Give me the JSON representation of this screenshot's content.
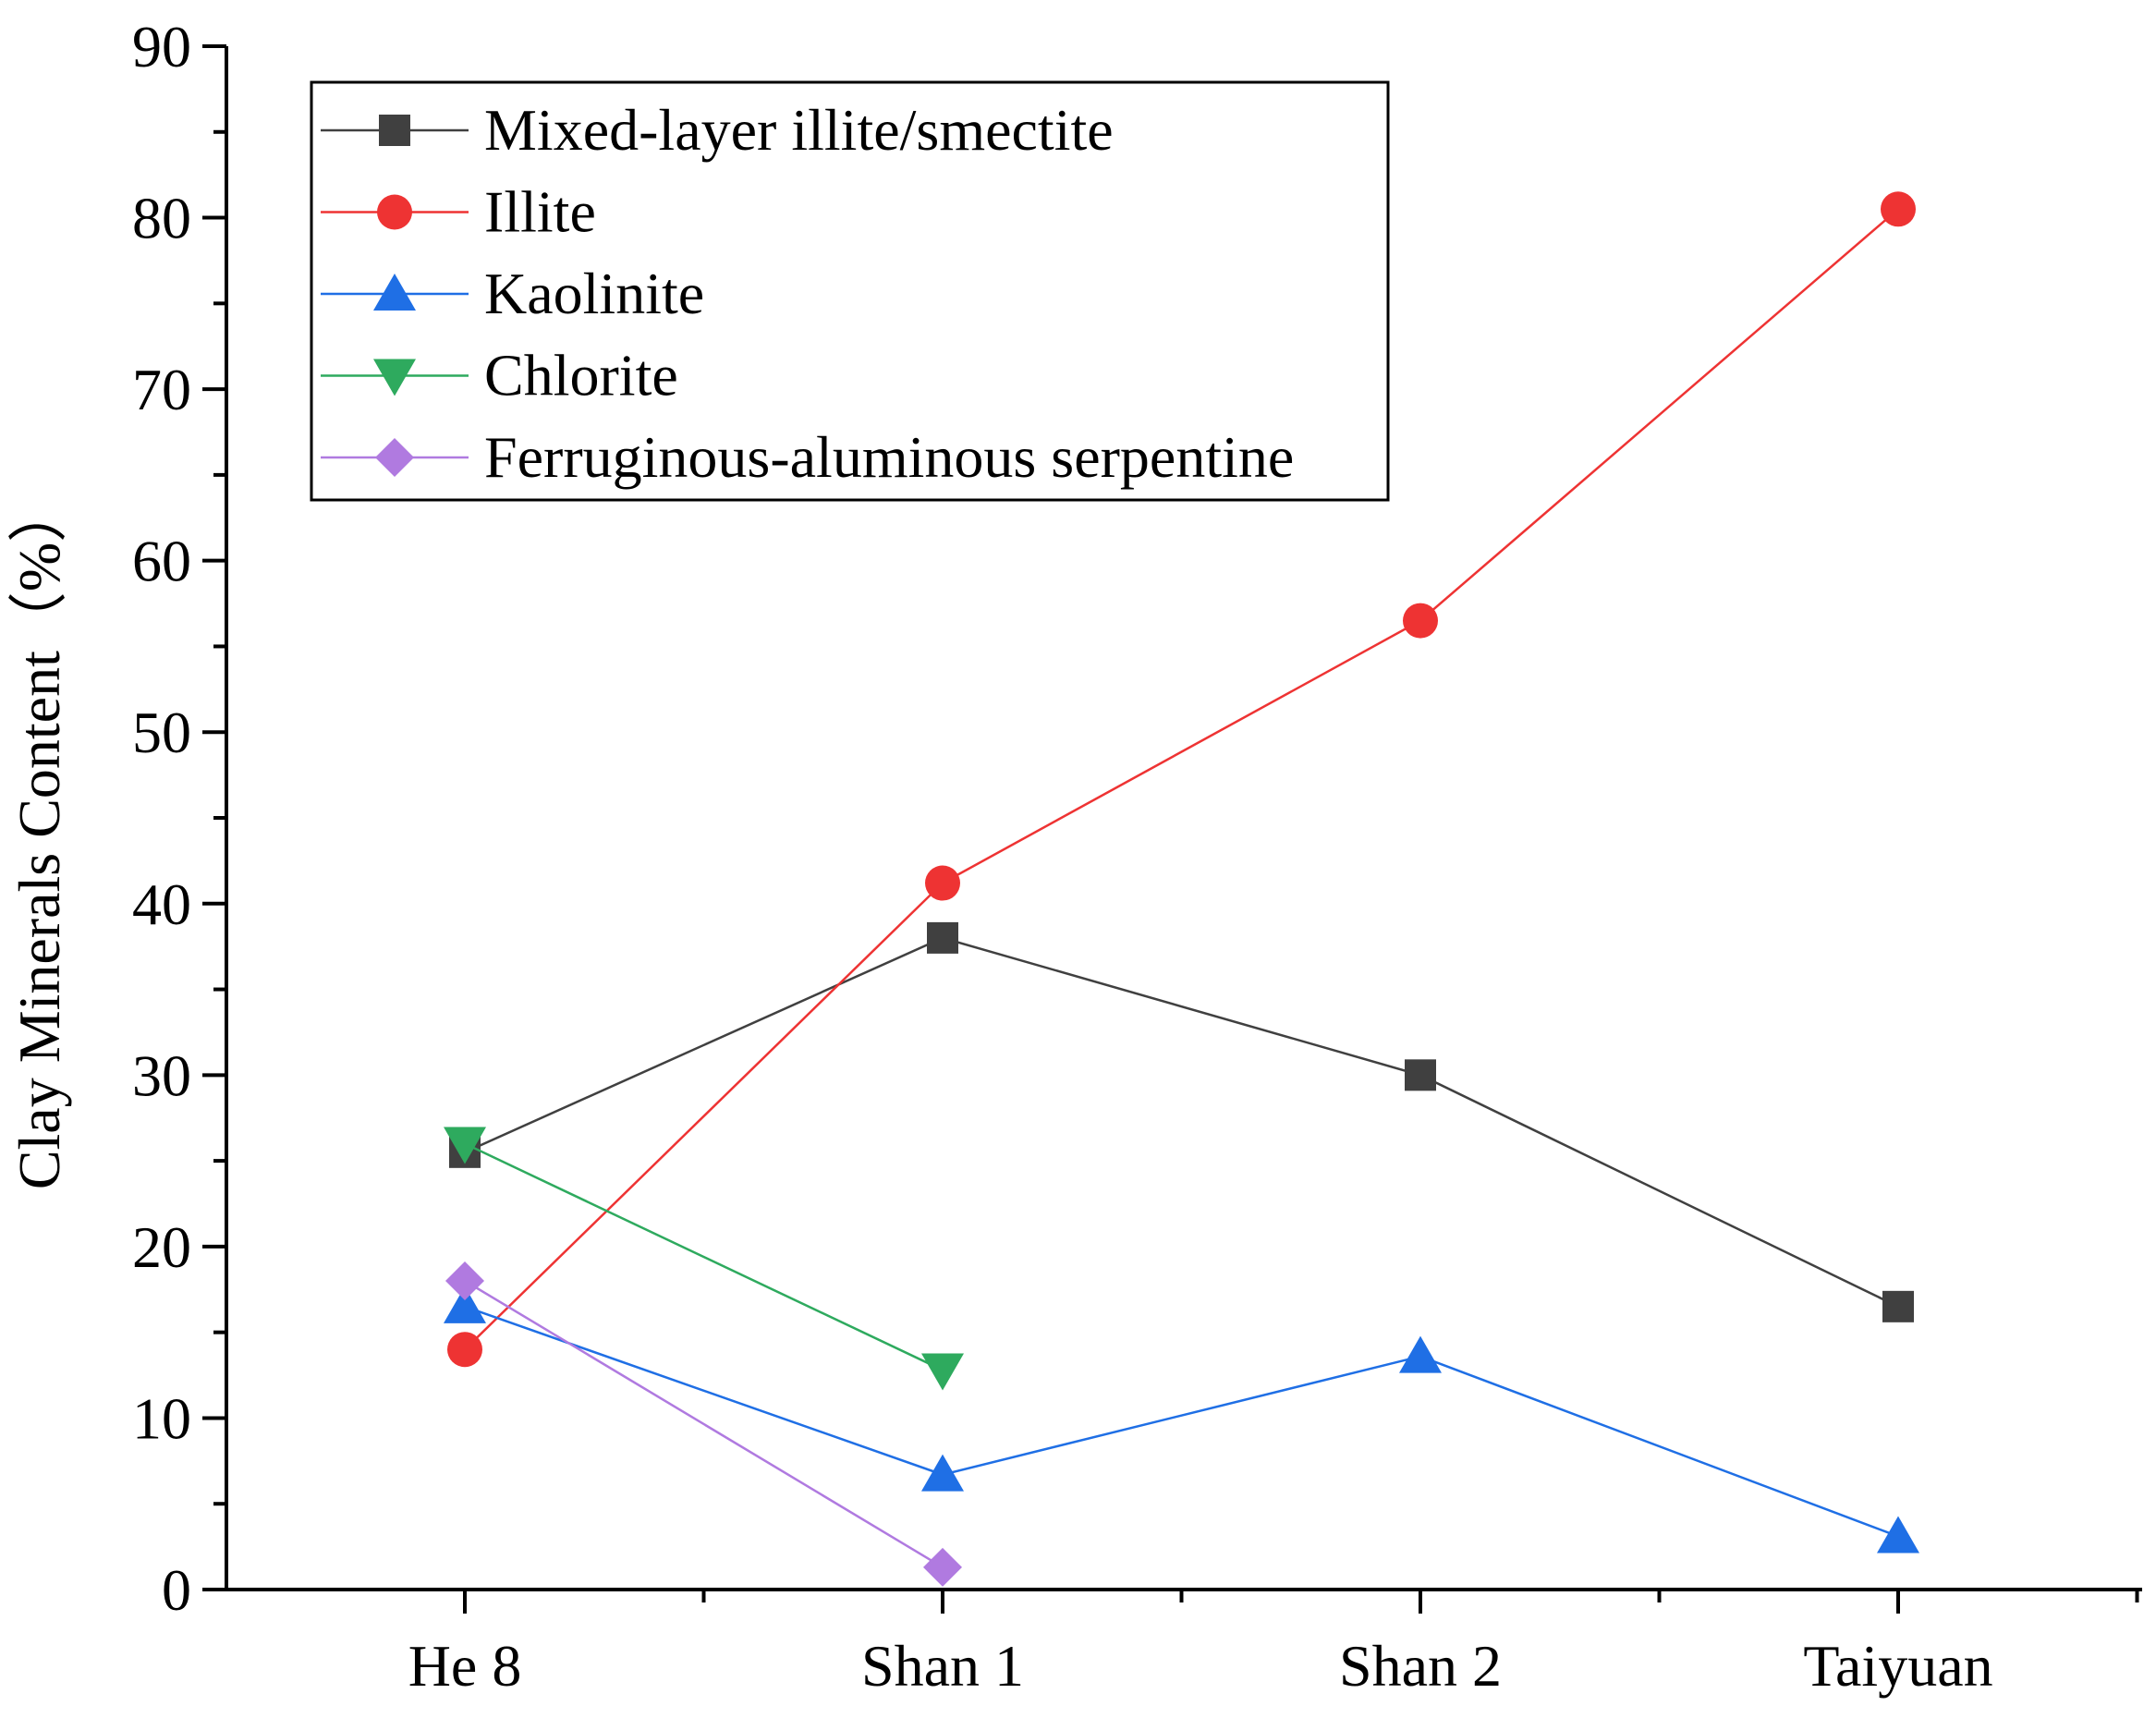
{
  "chart_data": {
    "type": "line",
    "title": "",
    "xlabel": "",
    "ylabel": "Clay Minerals Content（%）",
    "categories": [
      "He 8",
      "Shan 1",
      "Shan 2",
      "Taiyuan"
    ],
    "ylim": [
      0,
      90
    ],
    "yticks": [
      0,
      10,
      20,
      30,
      40,
      50,
      60,
      70,
      80,
      90
    ],
    "legend_position": "top-left",
    "series": [
      {
        "name": "Mixed-layer illite/smectite",
        "color": "#404040",
        "marker": "square",
        "values": [
          25.5,
          38,
          30,
          16.5
        ]
      },
      {
        "name": "Illite",
        "color": "#ee3333",
        "marker": "circle",
        "values": [
          14,
          41.2,
          56.5,
          80.5
        ]
      },
      {
        "name": "Kaolinite",
        "color": "#1f6fe5",
        "marker": "triangle-up",
        "values": [
          16.5,
          6.7,
          13.6,
          3.1
        ]
      },
      {
        "name": "Chlorite",
        "color": "#2eaa5e",
        "marker": "triangle-down",
        "values": [
          26,
          12.8,
          null,
          null
        ]
      },
      {
        "name": "Ferruginous-aluminous serpentine",
        "color": "#b07ae0",
        "marker": "diamond",
        "values": [
          18,
          1.3,
          null,
          null
        ]
      }
    ]
  }
}
